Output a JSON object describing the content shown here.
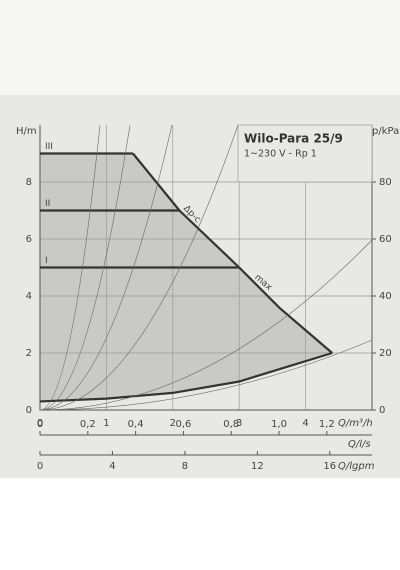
{
  "chart_data": {
    "type": "line",
    "title": "Wilo-Para 25/9",
    "subtitle": "1~230 V - Rp 1",
    "xlabel": "Q/m³/h",
    "ylabel": "H/m",
    "y2label": "p/kPa",
    "xlim": [
      0,
      5
    ],
    "xticks": [
      0,
      1,
      2,
      3,
      4
    ],
    "ylim": [
      0,
      10
    ],
    "yticks": [
      0,
      2,
      4,
      6,
      8
    ],
    "y2lim": [
      0,
      100
    ],
    "y2ticks": [
      0,
      20,
      40,
      60,
      80
    ],
    "grid": true,
    "annotations": [
      "Δp-c"
    ],
    "series": [
      {
        "name": "III",
        "color": "#333333",
        "x": [
          0,
          1.4
        ],
        "values": [
          9,
          9
        ]
      },
      {
        "name": "II",
        "color": "#333333",
        "x": [
          0,
          2.1
        ],
        "values": [
          7,
          7
        ]
      },
      {
        "name": "I",
        "color": "#333333",
        "x": [
          0,
          3
        ],
        "values": [
          5,
          5
        ]
      },
      {
        "name": "max",
        "color": "#333333",
        "x": [
          1.4,
          2.1,
          3,
          3.6,
          4.4
        ],
        "values": [
          9,
          7,
          5,
          3.6,
          2
        ]
      },
      {
        "color": "#333333",
        "x": [
          4.4,
          3,
          2,
          1,
          0
        ],
        "values": [
          2,
          1,
          0.6,
          0.4,
          0.3
        ]
      }
    ],
    "secondary_x_axes": [
      {
        "label": "Q/l/s",
        "xlim": [
          0,
          1.3889
        ],
        "xticks": [
          0,
          {
            "value": 0.2,
            "label": "0,2"
          },
          {
            "value": 0.4,
            "label": "0,4"
          },
          {
            "value": 0.6,
            "label": "0,6"
          },
          {
            "value": 0.8,
            "label": "0,8"
          },
          {
            "value": 1,
            "label": "1,0"
          },
          {
            "value": 1.2,
            "label": "1,2"
          }
        ]
      },
      {
        "label": "Q/lgpm",
        "xlim": [
          0,
          18.33
        ],
        "xticks": [
          0,
          4,
          8,
          12,
          16
        ]
      }
    ]
  }
}
